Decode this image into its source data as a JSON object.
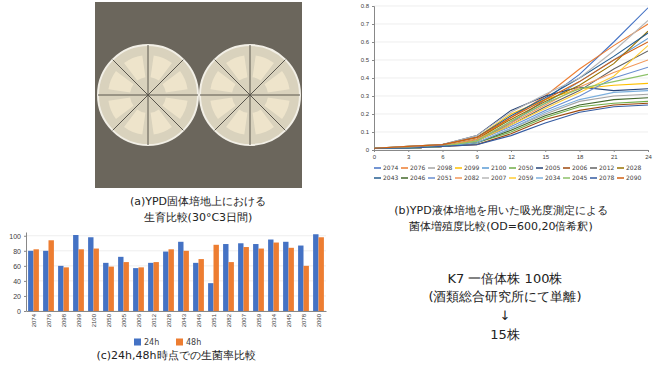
{
  "chart_data": [
    {
      "type": "line",
      "title": [
        "(b)YPD液体培地を用いた吸光度測定による",
        "菌体増殖度比較(OD=600,20倍希釈)"
      ],
      "x": [
        0,
        3,
        6,
        9,
        12,
        15,
        18,
        21,
        24
      ],
      "xlim": [
        0,
        24
      ],
      "xticks": [
        0,
        3,
        6,
        9,
        12,
        15,
        18,
        21,
        24
      ],
      "ylim": [
        0,
        0.8
      ],
      "yticks": [
        0,
        0.1,
        0.2,
        0.3,
        0.4,
        0.5,
        0.6,
        0.7,
        0.8
      ],
      "grid": true,
      "legend": "bottom",
      "series": [
        {
          "name": "2074",
          "color": "#4472c4",
          "values": [
            0.01,
            0.01,
            0.02,
            0.05,
            0.15,
            0.28,
            0.42,
            0.6,
            0.79
          ]
        },
        {
          "name": "2076",
          "color": "#ed7d31",
          "values": [
            0.01,
            0.01,
            0.02,
            0.06,
            0.18,
            0.3,
            0.45,
            0.58,
            0.7
          ]
        },
        {
          "name": "2098",
          "color": "#a5a5a5",
          "values": [
            0.01,
            0.01,
            0.02,
            0.04,
            0.12,
            0.2,
            0.27,
            0.3,
            0.31
          ]
        },
        {
          "name": "2099",
          "color": "#ffc000",
          "values": [
            0.01,
            0.02,
            0.03,
            0.07,
            0.2,
            0.28,
            0.34,
            0.36,
            0.37
          ]
        },
        {
          "name": "2100",
          "color": "#5b9bd5",
          "values": [
            0.01,
            0.01,
            0.02,
            0.05,
            0.16,
            0.26,
            0.38,
            0.5,
            0.62
          ]
        },
        {
          "name": "2050",
          "color": "#70ad47",
          "values": [
            0.01,
            0.01,
            0.02,
            0.04,
            0.1,
            0.18,
            0.24,
            0.26,
            0.27
          ]
        },
        {
          "name": "2005",
          "color": "#264478",
          "values": [
            0.01,
            0.01,
            0.03,
            0.08,
            0.22,
            0.3,
            0.35,
            0.33,
            0.34
          ]
        },
        {
          "name": "2006",
          "color": "#9e480e",
          "values": [
            0.01,
            0.01,
            0.02,
            0.03,
            0.09,
            0.17,
            0.22,
            0.25,
            0.26
          ]
        },
        {
          "name": "2012",
          "color": "#636363",
          "values": [
            0.01,
            0.01,
            0.02,
            0.05,
            0.14,
            0.24,
            0.33,
            0.45,
            0.55
          ]
        },
        {
          "name": "2028",
          "color": "#997300",
          "values": [
            0.01,
            0.01,
            0.02,
            0.06,
            0.17,
            0.27,
            0.36,
            0.48,
            0.66
          ]
        },
        {
          "name": "2043",
          "color": "#255e91",
          "values": [
            0.01,
            0.02,
            0.03,
            0.07,
            0.19,
            0.29,
            0.4,
            0.52,
            0.65
          ]
        },
        {
          "name": "2046",
          "color": "#43682b",
          "values": [
            0.01,
            0.01,
            0.02,
            0.04,
            0.11,
            0.19,
            0.25,
            0.28,
            0.29
          ]
        },
        {
          "name": "2051",
          "color": "#698ed0",
          "values": [
            0.01,
            0.01,
            0.02,
            0.05,
            0.13,
            0.22,
            0.3,
            0.4,
            0.46
          ]
        },
        {
          "name": "2082",
          "color": "#f1975a",
          "values": [
            0.01,
            0.01,
            0.02,
            0.06,
            0.15,
            0.25,
            0.35,
            0.43,
            0.5
          ]
        },
        {
          "name": "2007",
          "color": "#b7b7b7",
          "values": [
            0.01,
            0.02,
            0.03,
            0.08,
            0.21,
            0.31,
            0.4,
            0.55,
            0.72
          ]
        },
        {
          "name": "2059",
          "color": "#ffcd33",
          "values": [
            0.01,
            0.01,
            0.02,
            0.05,
            0.14,
            0.23,
            0.32,
            0.41,
            0.58
          ]
        },
        {
          "name": "2034",
          "color": "#7cafdd",
          "values": [
            0.01,
            0.01,
            0.02,
            0.04,
            0.12,
            0.21,
            0.28,
            0.32,
            0.33
          ]
        },
        {
          "name": "2045",
          "color": "#8cc168",
          "values": [
            0.01,
            0.01,
            0.02,
            0.05,
            0.16,
            0.26,
            0.34,
            0.38,
            0.42
          ]
        },
        {
          "name": "2078",
          "color": "#335aa1",
          "values": [
            0.01,
            0.01,
            0.02,
            0.03,
            0.08,
            0.15,
            0.21,
            0.24,
            0.25
          ]
        },
        {
          "name": "2090",
          "color": "#d26012",
          "values": [
            0.01,
            0.02,
            0.03,
            0.07,
            0.18,
            0.28,
            0.38,
            0.5,
            0.6
          ]
        }
      ]
    },
    {
      "type": "bar",
      "title": [
        "(c)24h,48h時点での生菌率比較"
      ],
      "categories": [
        "2074",
        "2076",
        "2098",
        "2099",
        "2100",
        "2050",
        "2005",
        "2006",
        "2012",
        "2028",
        "2043",
        "2046",
        "2051",
        "2082",
        "2007",
        "2059",
        "2034",
        "2045",
        "2078",
        "2090"
      ],
      "ylim": [
        0,
        105
      ],
      "yticks": [
        0,
        20,
        40,
        60,
        80,
        100
      ],
      "grid": true,
      "legend": "bottom",
      "series": [
        {
          "name": "24h",
          "color": "#4472c4",
          "values": [
            80,
            80,
            60,
            101,
            98,
            64,
            72,
            57,
            64,
            79,
            92,
            64,
            37,
            89,
            90,
            89,
            95,
            92,
            87,
            102
          ]
        },
        {
          "name": "48h",
          "color": "#ed7d31",
          "values": [
            82,
            94,
            58,
            82,
            83,
            59,
            65,
            58,
            65,
            82,
            80,
            69,
            88,
            65,
            85,
            83,
            91,
            84,
            60,
            98
          ]
        }
      ]
    }
  ],
  "photo": {
    "title": [
      "(a)YPD固体培地上における",
      "生育比較(30°C3日間)"
    ]
  },
  "note": {
    "lines": [
      "K7 一倍体株 100株",
      "(酒類総合研究所にて単離)",
      "↓",
      "15株"
    ]
  }
}
